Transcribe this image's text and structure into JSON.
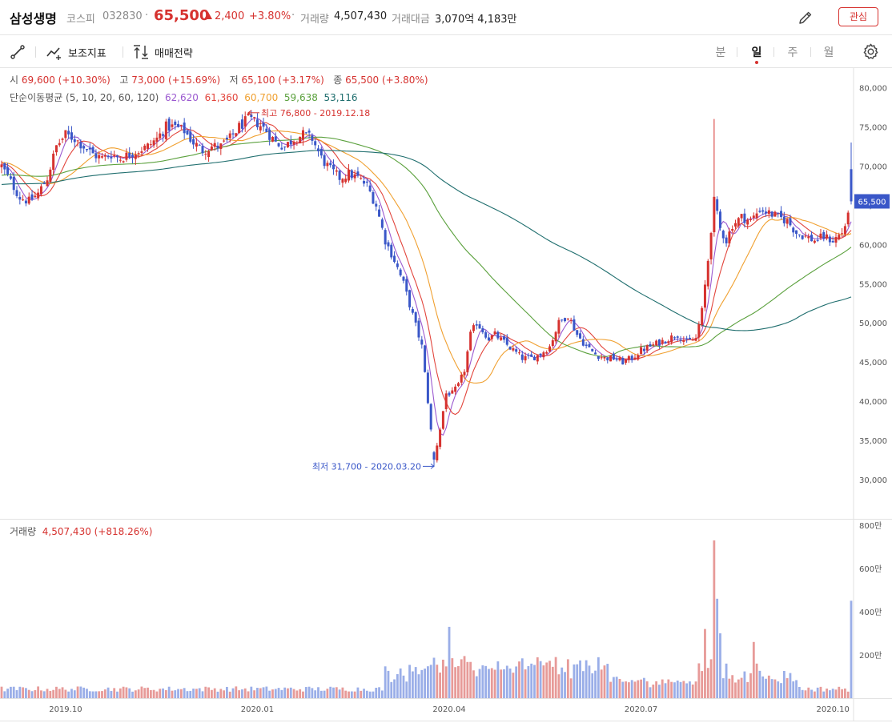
{
  "header": {
    "name": "삼성생명",
    "market": "코스피",
    "code": "032830",
    "dot": "·",
    "price": "65,500",
    "change": "2,400",
    "rate": "+3.80%",
    "volume_label": "거래량",
    "volume": "4,507,430",
    "amount_label": "거래대금",
    "amount": "3,070억 4,183만",
    "favorite_label": "관심",
    "pencil_icon": "pencil-icon"
  },
  "toolbar": {
    "draw_icon": "line-draw-icon",
    "indicator_label": "보조지표",
    "strategy_label": "매매전략",
    "periods": [
      "분",
      "일",
      "주",
      "월"
    ],
    "active_period": "일",
    "settings_icon": "gear-icon"
  },
  "ohlc": {
    "open_label": "시",
    "open": "69,600 (+10.30%)",
    "high_label": "고",
    "high": "73,000 (+15.69%)",
    "low_label": "저",
    "low": "65,100 (+3.17%)",
    "close_label": "종",
    "close": "65,500 (+3.80%)"
  },
  "ma_legend": {
    "label": "단순이동평균 (5, 10, 20, 60, 120)",
    "values": [
      {
        "value": "62,620",
        "color": "#9b59d0"
      },
      {
        "value": "61,360",
        "color": "#e2453c"
      },
      {
        "value": "60,700",
        "color": "#f0a030"
      },
      {
        "value": "59,638",
        "color": "#5aa03c"
      },
      {
        "value": "53,116",
        "color": "#1f6e6e"
      }
    ]
  },
  "volume_legend": {
    "label": "거래량",
    "value": "4,507,430 (+818.26%)"
  },
  "chart_data": {
    "type": "candlestick",
    "price_axis": {
      "min": 25000,
      "max": 82500,
      "ticks": [
        80000,
        75000,
        70000,
        65000,
        60000,
        55000,
        50000,
        45000,
        40000,
        35000,
        30000
      ],
      "tick_labels": [
        "80,000",
        "75,000",
        "70,000",
        "65,000",
        "60,000",
        "55,000",
        "50,000",
        "45,000",
        "40,000",
        "35,000",
        "30,000"
      ]
    },
    "current_price": 65500,
    "current_price_label": "65,500",
    "volume_axis": {
      "unit": "만",
      "max": 8000000,
      "ticks": [
        8000000,
        6000000,
        4000000,
        2000000
      ],
      "tick_labels": [
        "800만",
        "600만",
        "400만",
        "200만"
      ]
    },
    "x_labels": [
      {
        "label": "2019.10",
        "index": 21
      },
      {
        "label": "2020.01",
        "index": 84
      },
      {
        "label": "2020.04",
        "index": 147
      },
      {
        "label": "2020.07",
        "index": 210
      },
      {
        "label": "2020.10",
        "index": 273
      }
    ],
    "annotations": [
      {
        "text": "최고 76,800 - 2019.12.18",
        "price": 76800,
        "index": 81,
        "side": "right",
        "color": "#d6322f"
      },
      {
        "text": "최저 31,700 - 2020.03.20",
        "price": 31700,
        "index": 142,
        "side": "left",
        "color": "#3a57c8"
      }
    ],
    "colors": {
      "up": "#d6322f",
      "down": "#3a57c8",
      "up_vol": "#e79a98",
      "down_vol": "#9aaee8"
    },
    "close_keypoints": [
      [
        0,
        70000
      ],
      [
        3,
        68000
      ],
      [
        6,
        66000
      ],
      [
        9,
        65500
      ],
      [
        12,
        66500
      ],
      [
        15,
        68500
      ],
      [
        18,
        72500
      ],
      [
        21,
        74000
      ],
      [
        24,
        73500
      ],
      [
        27,
        72500
      ],
      [
        30,
        71500
      ],
      [
        33,
        71000
      ],
      [
        36,
        71500
      ],
      [
        39,
        71000
      ],
      [
        42,
        71500
      ],
      [
        45,
        72000
      ],
      [
        48,
        72500
      ],
      [
        51,
        73500
      ],
      [
        54,
        75000
      ],
      [
        57,
        75000
      ],
      [
        60,
        74500
      ],
      [
        63,
        73000
      ],
      [
        66,
        72000
      ],
      [
        69,
        72500
      ],
      [
        72,
        72500
      ],
      [
        75,
        73500
      ],
      [
        78,
        75000
      ],
      [
        81,
        76000
      ],
      [
        84,
        75500
      ],
      [
        87,
        74500
      ],
      [
        90,
        73000
      ],
      [
        93,
        72500
      ],
      [
        96,
        73500
      ],
      [
        99,
        74000
      ],
      [
        102,
        73500
      ],
      [
        105,
        71000
      ],
      [
        108,
        69500
      ],
      [
        111,
        68500
      ],
      [
        114,
        69000
      ],
      [
        117,
        68500
      ],
      [
        120,
        67500
      ],
      [
        123,
        65000
      ],
      [
        126,
        60500
      ],
      [
        129,
        58000
      ],
      [
        132,
        55000
      ],
      [
        135,
        51000
      ],
      [
        138,
        47000
      ],
      [
        140,
        40000
      ],
      [
        142,
        32500
      ],
      [
        144,
        36500
      ],
      [
        146,
        41000
      ],
      [
        148,
        41000
      ],
      [
        150,
        42000
      ],
      [
        152,
        44000
      ],
      [
        154,
        48500
      ],
      [
        156,
        50000
      ],
      [
        158,
        49000
      ],
      [
        160,
        48000
      ],
      [
        162,
        48500
      ],
      [
        165,
        47500
      ],
      [
        168,
        46500
      ],
      [
        171,
        45500
      ],
      [
        174,
        45500
      ],
      [
        177,
        46000
      ],
      [
        180,
        47000
      ],
      [
        183,
        50000
      ],
      [
        186,
        51000
      ],
      [
        189,
        48500
      ],
      [
        192,
        47000
      ],
      [
        195,
        46000
      ],
      [
        198,
        45500
      ],
      [
        201,
        45500
      ],
      [
        204,
        45000
      ],
      [
        207,
        45500
      ],
      [
        210,
        46500
      ],
      [
        213,
        47000
      ],
      [
        216,
        47500
      ],
      [
        219,
        48000
      ],
      [
        222,
        48500
      ],
      [
        225,
        47500
      ],
      [
        228,
        48000
      ],
      [
        230,
        51500
      ],
      [
        232,
        58000
      ],
      [
        233,
        62000
      ],
      [
        234,
        65500
      ],
      [
        236,
        62000
      ],
      [
        238,
        60500
      ],
      [
        240,
        62500
      ],
      [
        243,
        63500
      ],
      [
        246,
        63000
      ],
      [
        249,
        64500
      ],
      [
        252,
        64000
      ],
      [
        255,
        63500
      ],
      [
        258,
        63000
      ],
      [
        261,
        61500
      ],
      [
        264,
        61000
      ],
      [
        267,
        60500
      ],
      [
        270,
        61000
      ],
      [
        273,
        60500
      ],
      [
        276,
        61500
      ],
      [
        278,
        63500
      ],
      [
        279,
        65500
      ]
    ],
    "volume_spikes": [
      [
        147,
        3300000
      ],
      [
        151,
        1800000
      ],
      [
        186,
        1800000
      ],
      [
        231,
        3200000
      ],
      [
        232,
        1400000
      ],
      [
        233,
        1800000
      ],
      [
        234,
        7300000
      ],
      [
        235,
        4600000
      ],
      [
        236,
        3000000
      ],
      [
        238,
        1600000
      ],
      [
        247,
        2600000
      ],
      [
        248,
        1600000
      ],
      [
        279,
        4507430
      ]
    ],
    "moving_averages": [
      {
        "period": 5,
        "color": "#9b59d0"
      },
      {
        "period": 10,
        "color": "#e2453c"
      },
      {
        "period": 20,
        "color": "#f0a030"
      },
      {
        "period": 60,
        "color": "#5aa03c"
      },
      {
        "period": 120,
        "color": "#1f6e6e"
      }
    ]
  }
}
